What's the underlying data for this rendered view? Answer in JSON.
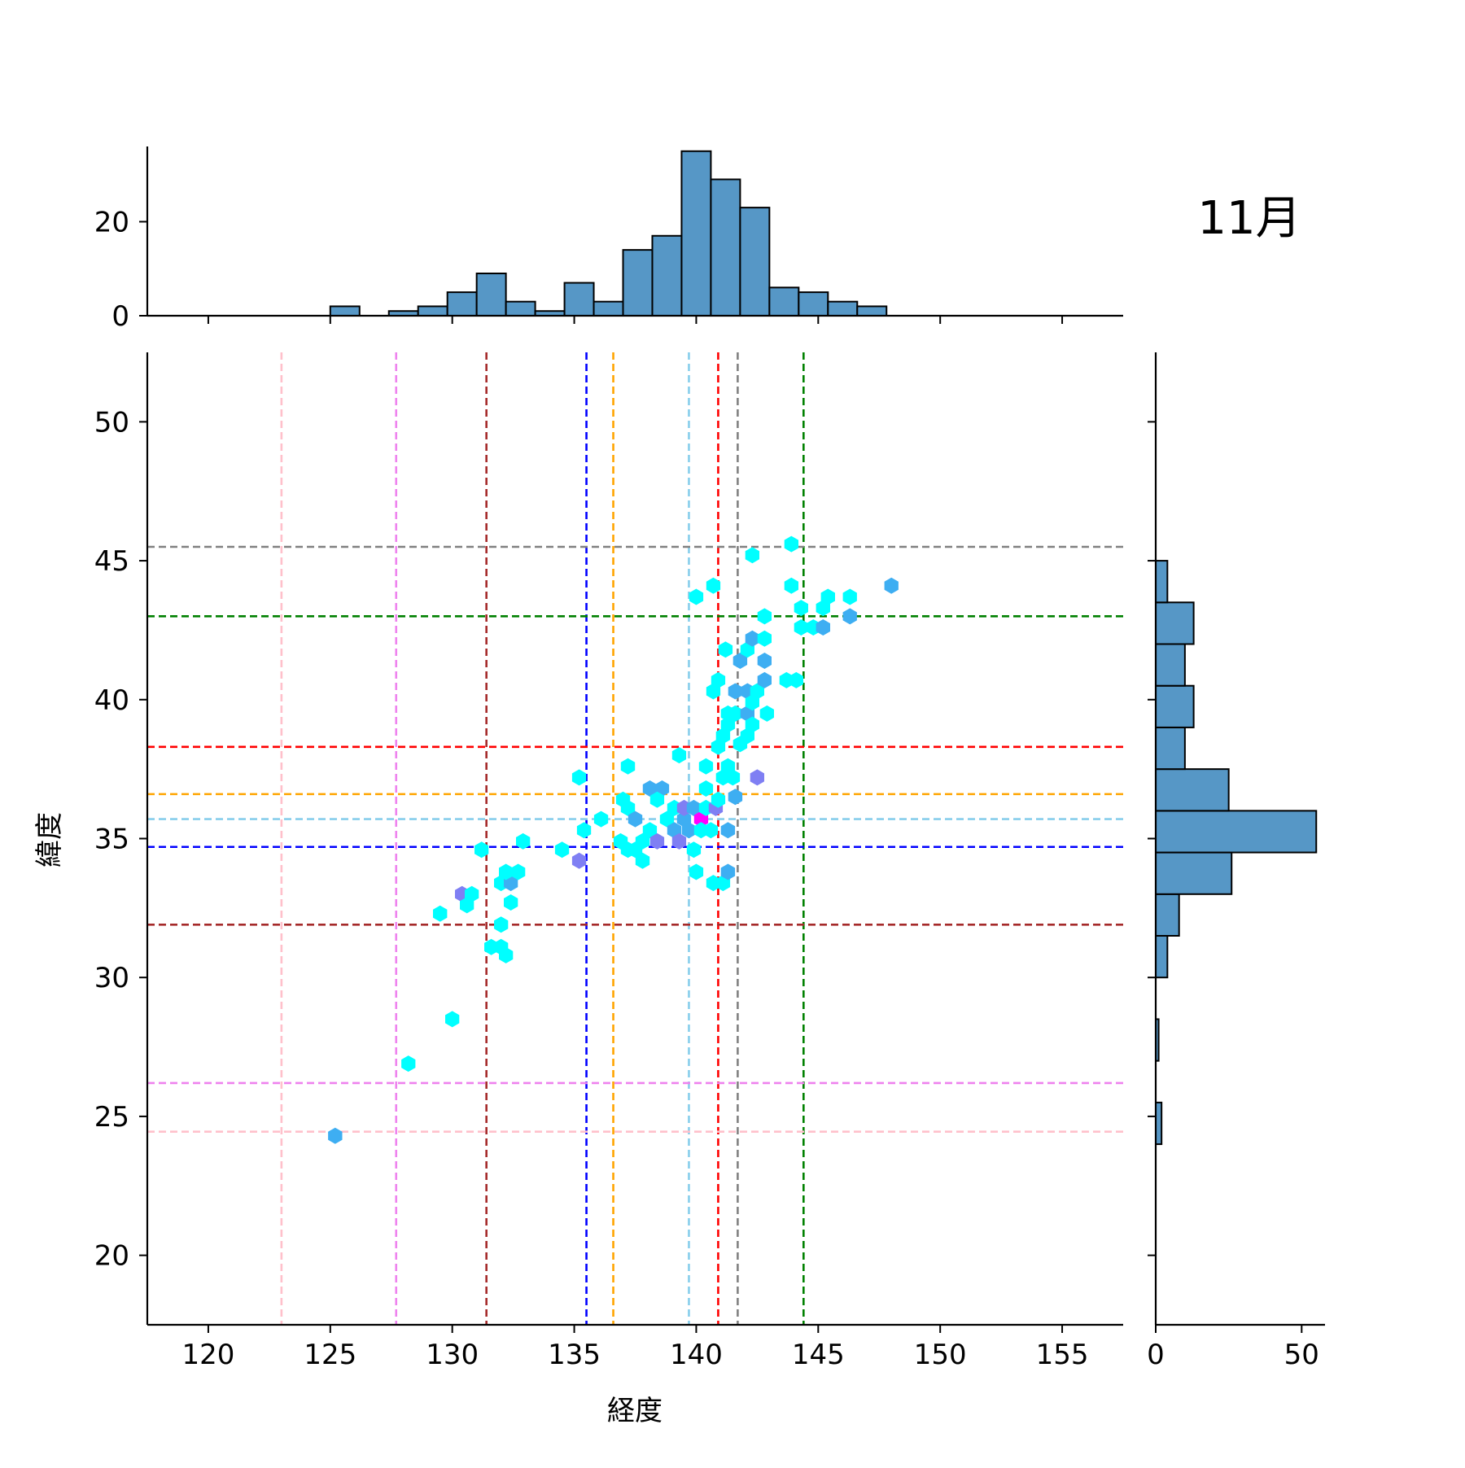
{
  "chart_data": {
    "type": "hexbin-jointplot",
    "title": "11月",
    "xlabel": "経度",
    "ylabel": "緯度",
    "xlim": [
      117.5,
      157.5
    ],
    "ylim": [
      17.5,
      52.5
    ],
    "xticks": [
      120,
      125,
      130,
      135,
      140,
      145,
      150,
      155
    ],
    "yticks": [
      20,
      25,
      30,
      35,
      40,
      45,
      50
    ],
    "top_hist": {
      "ylim": [
        0,
        36
      ],
      "yticks": [
        0,
        20
      ],
      "bin_edges": [
        125,
        126.2,
        127.4,
        128.6,
        129.8,
        131,
        132.2,
        133.4,
        134.6,
        135.8,
        137,
        138.2,
        139.4,
        140.6,
        141.8,
        143,
        144.2,
        145.4,
        146.6,
        147.8
      ],
      "counts": [
        2,
        0,
        1,
        2,
        5,
        9,
        3,
        1,
        7,
        3,
        14,
        17,
        35,
        29,
        23,
        6,
        5,
        3,
        2
      ]
    },
    "right_hist": {
      "xlim": [
        0,
        58
      ],
      "xticks": [
        0,
        50
      ],
      "bin_edges": [
        24,
        25.5,
        27,
        28.5,
        30,
        31.5,
        33,
        34.5,
        36,
        37.5,
        39,
        40.5,
        42,
        43.5,
        45,
        45.5
      ],
      "counts": [
        2,
        0,
        1,
        0,
        4,
        8,
        26,
        55,
        25,
        10,
        13,
        10,
        13,
        4,
        0
      ]
    },
    "reference_lines": [
      {
        "color": "#ffc0cb",
        "x": 123.0,
        "y": 24.45
      },
      {
        "color": "#ee82ee",
        "x": 127.7,
        "y": 26.2
      },
      {
        "color": "#a52a2a",
        "x": 131.4,
        "y": 31.9
      },
      {
        "color": "#0000ff",
        "x": 135.5,
        "y": 34.7
      },
      {
        "color": "#ffa500",
        "x": 136.6,
        "y": 36.6
      },
      {
        "color": "#87ceeb",
        "x": 139.7,
        "y": 35.7
      },
      {
        "color": "#ff0000",
        "x": 140.9,
        "y": 38.3
      },
      {
        "color": "#808080",
        "x": 141.7,
        "y": 45.5
      },
      {
        "color": "#008000",
        "x": 144.4,
        "y": 43.0
      }
    ],
    "points": [
      {
        "x": 125.2,
        "y": 24.3,
        "color": "#3eaef2"
      },
      {
        "x": 128.2,
        "y": 26.9,
        "color": "#00ffff"
      },
      {
        "x": 130.0,
        "y": 28.5,
        "color": "#00ffff"
      },
      {
        "x": 129.5,
        "y": 32.3,
        "color": "#00ffff"
      },
      {
        "x": 130.4,
        "y": 33.0,
        "color": "#7f7ff3"
      },
      {
        "x": 130.8,
        "y": 33.0,
        "color": "#00ffff"
      },
      {
        "x": 130.6,
        "y": 32.6,
        "color": "#00ffff"
      },
      {
        "x": 131.2,
        "y": 34.6,
        "color": "#00ffff"
      },
      {
        "x": 131.6,
        "y": 31.1,
        "color": "#00ffff"
      },
      {
        "x": 132.0,
        "y": 31.1,
        "color": "#00ffff"
      },
      {
        "x": 132.2,
        "y": 30.8,
        "color": "#00ffff"
      },
      {
        "x": 132.0,
        "y": 31.9,
        "color": "#00ffff"
      },
      {
        "x": 132.4,
        "y": 32.7,
        "color": "#00ffff"
      },
      {
        "x": 132.0,
        "y": 33.4,
        "color": "#00ffff"
      },
      {
        "x": 132.4,
        "y": 33.4,
        "color": "#3eaef2"
      },
      {
        "x": 132.2,
        "y": 33.8,
        "color": "#00ffff"
      },
      {
        "x": 132.7,
        "y": 33.8,
        "color": "#00ffff"
      },
      {
        "x": 132.9,
        "y": 34.9,
        "color": "#00ffff"
      },
      {
        "x": 134.5,
        "y": 34.6,
        "color": "#00ffff"
      },
      {
        "x": 135.2,
        "y": 34.2,
        "color": "#7f7ff3"
      },
      {
        "x": 135.4,
        "y": 35.3,
        "color": "#00ffff"
      },
      {
        "x": 135.2,
        "y": 37.2,
        "color": "#00ffff"
      },
      {
        "x": 136.1,
        "y": 35.7,
        "color": "#00ffff"
      },
      {
        "x": 136.9,
        "y": 34.9,
        "color": "#00ffff"
      },
      {
        "x": 137.2,
        "y": 34.6,
        "color": "#00ffff"
      },
      {
        "x": 137.5,
        "y": 34.6,
        "color": "#00ffff"
      },
      {
        "x": 137.8,
        "y": 34.2,
        "color": "#00ffff"
      },
      {
        "x": 137.8,
        "y": 34.9,
        "color": "#00ffff"
      },
      {
        "x": 138.1,
        "y": 35.3,
        "color": "#00ffff"
      },
      {
        "x": 137.2,
        "y": 36.1,
        "color": "#00ffff"
      },
      {
        "x": 137.5,
        "y": 35.7,
        "color": "#3eaef2"
      },
      {
        "x": 137.0,
        "y": 36.4,
        "color": "#00ffff"
      },
      {
        "x": 137.2,
        "y": 37.6,
        "color": "#00ffff"
      },
      {
        "x": 138.1,
        "y": 36.8,
        "color": "#3eaef2"
      },
      {
        "x": 138.6,
        "y": 36.8,
        "color": "#3eaef2"
      },
      {
        "x": 138.4,
        "y": 36.4,
        "color": "#00ffff"
      },
      {
        "x": 138.4,
        "y": 34.9,
        "color": "#7f7ff3"
      },
      {
        "x": 138.8,
        "y": 35.7,
        "color": "#00ffff"
      },
      {
        "x": 139.1,
        "y": 36.1,
        "color": "#00ffff"
      },
      {
        "x": 139.1,
        "y": 35.3,
        "color": "#3eaef2"
      },
      {
        "x": 139.3,
        "y": 34.9,
        "color": "#7f7ff3"
      },
      {
        "x": 139.5,
        "y": 35.7,
        "color": "#3eaef2"
      },
      {
        "x": 139.5,
        "y": 36.1,
        "color": "#7f7ff3"
      },
      {
        "x": 139.7,
        "y": 35.3,
        "color": "#3eaef2"
      },
      {
        "x": 139.9,
        "y": 34.6,
        "color": "#00ffff"
      },
      {
        "x": 139.9,
        "y": 36.1,
        "color": "#3eaef2"
      },
      {
        "x": 140.2,
        "y": 35.7,
        "color": "#ff00ff"
      },
      {
        "x": 140.2,
        "y": 35.3,
        "color": "#00ffff"
      },
      {
        "x": 140.4,
        "y": 36.1,
        "color": "#00ffff"
      },
      {
        "x": 140.4,
        "y": 36.8,
        "color": "#00ffff"
      },
      {
        "x": 140.6,
        "y": 35.3,
        "color": "#00ffff"
      },
      {
        "x": 140.8,
        "y": 36.1,
        "color": "#7f7ff3"
      },
      {
        "x": 140.9,
        "y": 36.4,
        "color": "#00ffff"
      },
      {
        "x": 139.3,
        "y": 38.0,
        "color": "#00ffff"
      },
      {
        "x": 140.4,
        "y": 37.6,
        "color": "#00ffff"
      },
      {
        "x": 140.0,
        "y": 33.8,
        "color": "#00ffff"
      },
      {
        "x": 140.7,
        "y": 33.4,
        "color": "#00ffff"
      },
      {
        "x": 141.1,
        "y": 33.4,
        "color": "#00ffff"
      },
      {
        "x": 141.3,
        "y": 33.8,
        "color": "#3eaef2"
      },
      {
        "x": 141.3,
        "y": 35.3,
        "color": "#3eaef2"
      },
      {
        "x": 141.1,
        "y": 37.2,
        "color": "#00ffff"
      },
      {
        "x": 141.3,
        "y": 37.6,
        "color": "#00ffff"
      },
      {
        "x": 141.5,
        "y": 37.2,
        "color": "#00ffff"
      },
      {
        "x": 141.6,
        "y": 36.5,
        "color": "#3eaef2"
      },
      {
        "x": 140.9,
        "y": 38.3,
        "color": "#00ffff"
      },
      {
        "x": 141.1,
        "y": 38.7,
        "color": "#00ffff"
      },
      {
        "x": 141.3,
        "y": 39.1,
        "color": "#00ffff"
      },
      {
        "x": 141.3,
        "y": 39.5,
        "color": "#00ffff"
      },
      {
        "x": 141.6,
        "y": 39.5,
        "color": "#00ffff"
      },
      {
        "x": 141.8,
        "y": 38.4,
        "color": "#00ffff"
      },
      {
        "x": 142.1,
        "y": 38.7,
        "color": "#00ffff"
      },
      {
        "x": 142.1,
        "y": 39.5,
        "color": "#3eaef2"
      },
      {
        "x": 142.3,
        "y": 39.1,
        "color": "#00ffff"
      },
      {
        "x": 142.9,
        "y": 39.5,
        "color": "#00ffff"
      },
      {
        "x": 140.7,
        "y": 40.3,
        "color": "#00ffff"
      },
      {
        "x": 140.9,
        "y": 40.7,
        "color": "#00ffff"
      },
      {
        "x": 141.6,
        "y": 40.3,
        "color": "#3eaef2"
      },
      {
        "x": 142.1,
        "y": 40.3,
        "color": "#3eaef2"
      },
      {
        "x": 142.5,
        "y": 40.3,
        "color": "#00ffff"
      },
      {
        "x": 142.3,
        "y": 39.9,
        "color": "#00ffff"
      },
      {
        "x": 142.8,
        "y": 40.7,
        "color": "#3eaef2"
      },
      {
        "x": 143.7,
        "y": 40.7,
        "color": "#00ffff"
      },
      {
        "x": 144.1,
        "y": 40.7,
        "color": "#00ffff"
      },
      {
        "x": 141.2,
        "y": 41.8,
        "color": "#00ffff"
      },
      {
        "x": 141.8,
        "y": 41.4,
        "color": "#3eaef2"
      },
      {
        "x": 142.1,
        "y": 41.8,
        "color": "#00ffff"
      },
      {
        "x": 142.3,
        "y": 42.2,
        "color": "#3eaef2"
      },
      {
        "x": 142.8,
        "y": 41.4,
        "color": "#3eaef2"
      },
      {
        "x": 142.8,
        "y": 42.2,
        "color": "#00ffff"
      },
      {
        "x": 142.8,
        "y": 43.0,
        "color": "#00ffff"
      },
      {
        "x": 144.3,
        "y": 42.6,
        "color": "#00ffff"
      },
      {
        "x": 144.8,
        "y": 42.6,
        "color": "#00ffff"
      },
      {
        "x": 145.2,
        "y": 42.6,
        "color": "#3eaef2"
      },
      {
        "x": 144.3,
        "y": 43.3,
        "color": "#00ffff"
      },
      {
        "x": 145.2,
        "y": 43.3,
        "color": "#00ffff"
      },
      {
        "x": 145.4,
        "y": 43.7,
        "color": "#00ffff"
      },
      {
        "x": 146.3,
        "y": 43.7,
        "color": "#00ffff"
      },
      {
        "x": 146.3,
        "y": 43.0,
        "color": "#3eaef2"
      },
      {
        "x": 148.0,
        "y": 44.1,
        "color": "#3eaef2"
      },
      {
        "x": 143.9,
        "y": 44.1,
        "color": "#00ffff"
      },
      {
        "x": 143.9,
        "y": 45.6,
        "color": "#00ffff"
      },
      {
        "x": 142.3,
        "y": 45.2,
        "color": "#00ffff"
      },
      {
        "x": 140.7,
        "y": 44.1,
        "color": "#00ffff"
      },
      {
        "x": 140.0,
        "y": 43.7,
        "color": "#00ffff"
      },
      {
        "x": 142.5,
        "y": 37.2,
        "color": "#7f7ff3"
      }
    ]
  },
  "colors": {
    "bar_fill": "#5697c6",
    "bar_edge": "#000000",
    "axis": "#000000"
  }
}
